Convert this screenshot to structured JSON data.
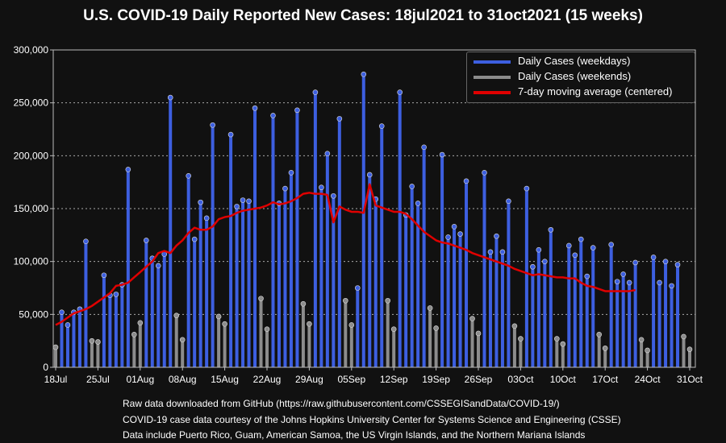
{
  "title": "U.S. COVID-19 Daily Reported New Cases: 18jul2021 to 31oct2021 (15 weeks)",
  "legend": {
    "weekdays": "Daily Cases (weekdays)",
    "weekends": "Daily Cases (weekends)",
    "moving_average": "7-day moving average (centered)"
  },
  "footer": [
    "Raw data downloaded from GitHub (https://raw.githubusercontent.com/CSSEGISandData/COVID-19/)",
    "COVID-19 case data courtesy of the Johns Hopkins University Center for Systems Science and Engineering (CSSE)",
    "Data include Puerto Rico, Guam, American Samoa, the US Virgin Islands, and the Northern Mariana Islands"
  ],
  "colors": {
    "weekday": "#3d5fe0",
    "weekend": "#8c8c8c",
    "moving_average": "#e00000",
    "background": "#111111",
    "grid": "#aaaaaa",
    "text": "#ffffff"
  },
  "chart_data": {
    "type": "bar",
    "title": "U.S. COVID-19 Daily Reported New Cases: 18jul2021 to 31oct2021 (15 weeks)",
    "ylim": [
      0,
      300000
    ],
    "yticks": [
      "0",
      "50,000",
      "100,000",
      "150,000",
      "200,000",
      "250,000",
      "300,000"
    ],
    "ytick_values": [
      0,
      50000,
      100000,
      150000,
      200000,
      250000,
      300000
    ],
    "xticks": [
      "18Jul",
      "25Jul",
      "01Aug",
      "08Aug",
      "15Aug",
      "22Aug",
      "29Aug",
      "05Sep",
      "12Sep",
      "19Sep",
      "26Sep",
      "03Oct",
      "10Oct",
      "17Oct",
      "24Oct",
      "31Oct"
    ],
    "start_date": "18Jul2021",
    "grid": true,
    "legend_position": "top-right",
    "series": [
      {
        "name": "Daily Cases (weekdays)",
        "style": "bar",
        "daily_values": [
          19000,
          52000,
          40000,
          52000,
          55000,
          119000,
          25000,
          24000,
          87000,
          68000,
          69000,
          78000,
          187000,
          31000,
          42000,
          120000,
          103000,
          96000,
          107000,
          255000,
          49000,
          26000,
          181000,
          121000,
          156000,
          141000,
          229000,
          48000,
          41000,
          220000,
          152000,
          158000,
          157000,
          245000,
          65000,
          36000,
          238000,
          155000,
          169000,
          184000,
          243000,
          60000,
          41000,
          260000,
          170000,
          202000,
          162000,
          235000,
          63000,
          40000,
          75000,
          277000,
          182000,
          159000,
          228000,
          63000,
          36000,
          260000,
          144000,
          171000,
          155000,
          208000,
          56000,
          37000,
          201000,
          123000,
          133000,
          126000,
          176000,
          46000,
          32000,
          184000,
          109000,
          124000,
          109000,
          157000,
          39000,
          27000,
          169000,
          95000,
          111000,
          100000,
          130000,
          27000,
          22000,
          115000,
          106000,
          121000,
          86000,
          113000,
          31000,
          18000,
          116000,
          81000,
          88000,
          80000,
          99000,
          26000,
          16000,
          104000,
          80000,
          100000,
          77000,
          97000,
          29000,
          17000
        ]
      },
      {
        "name": "Daily Cases (weekends)",
        "style": "bar",
        "weekend_days": "Saturday and Sunday"
      },
      {
        "name": "7-day moving average (centered)",
        "style": "line",
        "values": [
          40000,
          43000,
          47000,
          51000,
          53000,
          55000,
          58000,
          62000,
          66000,
          70000,
          77000,
          78000,
          80000,
          85000,
          90000,
          95000,
          100000,
          108000,
          110000,
          108000,
          115000,
          120000,
          127000,
          132000,
          130000,
          130000,
          133000,
          140000,
          142000,
          143000,
          146000,
          148000,
          149000,
          150000,
          151000,
          153000,
          156000,
          154000,
          155000,
          157000,
          160000,
          164000,
          165000,
          164000,
          164000,
          163000,
          137000,
          152000,
          149000,
          147000,
          147000,
          146000,
          173000,
          153000,
          151000,
          149000,
          147000,
          147000,
          145000,
          140000,
          134000,
          128000,
          124000,
          120000,
          118000,
          117000,
          115000,
          113000,
          111000,
          108000,
          106000,
          104000,
          102000,
          100000,
          98000,
          96000,
          93000,
          91000,
          89000,
          87000,
          88000,
          87000,
          86000,
          85000,
          85000,
          84000,
          84000,
          80000,
          77000,
          76000,
          74000,
          72000,
          72000,
          72000,
          72000,
          72000,
          73000
        ]
      }
    ]
  }
}
